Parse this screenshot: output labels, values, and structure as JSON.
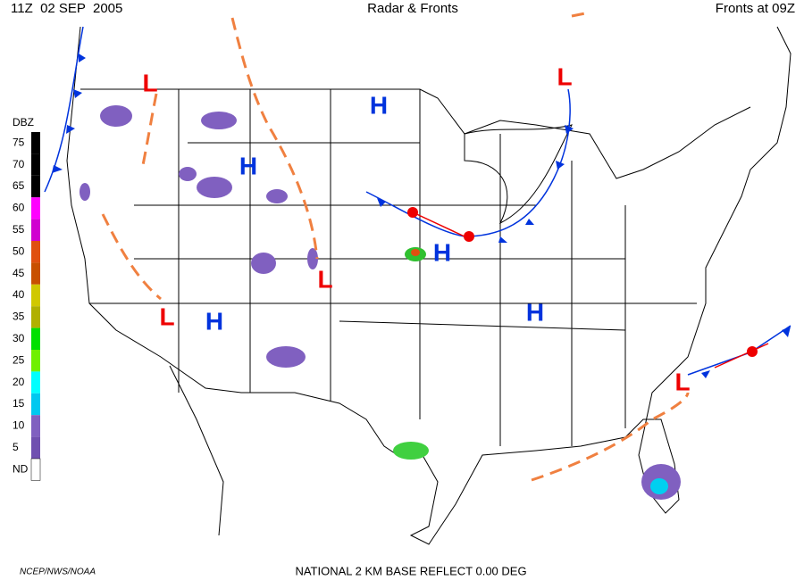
{
  "header": {
    "left": "11Z  02 SEP  2005",
    "center": "Radar & Fronts",
    "right": "Fronts at 09Z"
  },
  "legend": {
    "title": "DBZ",
    "levels": [
      {
        "label": "75",
        "color": "#000000"
      },
      {
        "label": "70",
        "color": "#000000"
      },
      {
        "label": "65",
        "color": "#000000"
      },
      {
        "label": "60",
        "color": "#ff00ff"
      },
      {
        "label": "55",
        "color": "#d000d0"
      },
      {
        "label": "50",
        "color": "#e05010"
      },
      {
        "label": "45",
        "color": "#c85000"
      },
      {
        "label": "40",
        "color": "#d0c800"
      },
      {
        "label": "35",
        "color": "#b0b000"
      },
      {
        "label": "30",
        "color": "#00e000"
      },
      {
        "label": "25",
        "color": "#70f000"
      },
      {
        "label": "20",
        "color": "#00ffff"
      },
      {
        "label": "15",
        "color": "#00c8f0"
      },
      {
        "label": "10",
        "color": "#8060c0"
      },
      {
        "label": "5",
        "color": "#7050b0"
      },
      {
        "label": "ND",
        "color": "#ffffff"
      }
    ]
  },
  "pressure_centers": [
    {
      "label": "L"
    },
    {
      "label": "H"
    },
    {
      "label": "L"
    },
    {
      "label": "H"
    },
    {
      "label": "H"
    },
    {
      "label": "L"
    },
    {
      "label": "L"
    },
    {
      "label": "H"
    },
    {
      "label": "H"
    },
    {
      "label": "L"
    }
  ],
  "footer": {
    "left": "NCEP/NWS/NOAA",
    "center": "NATIONAL 2 KM BASE REFLECT 0.00 DEG"
  }
}
